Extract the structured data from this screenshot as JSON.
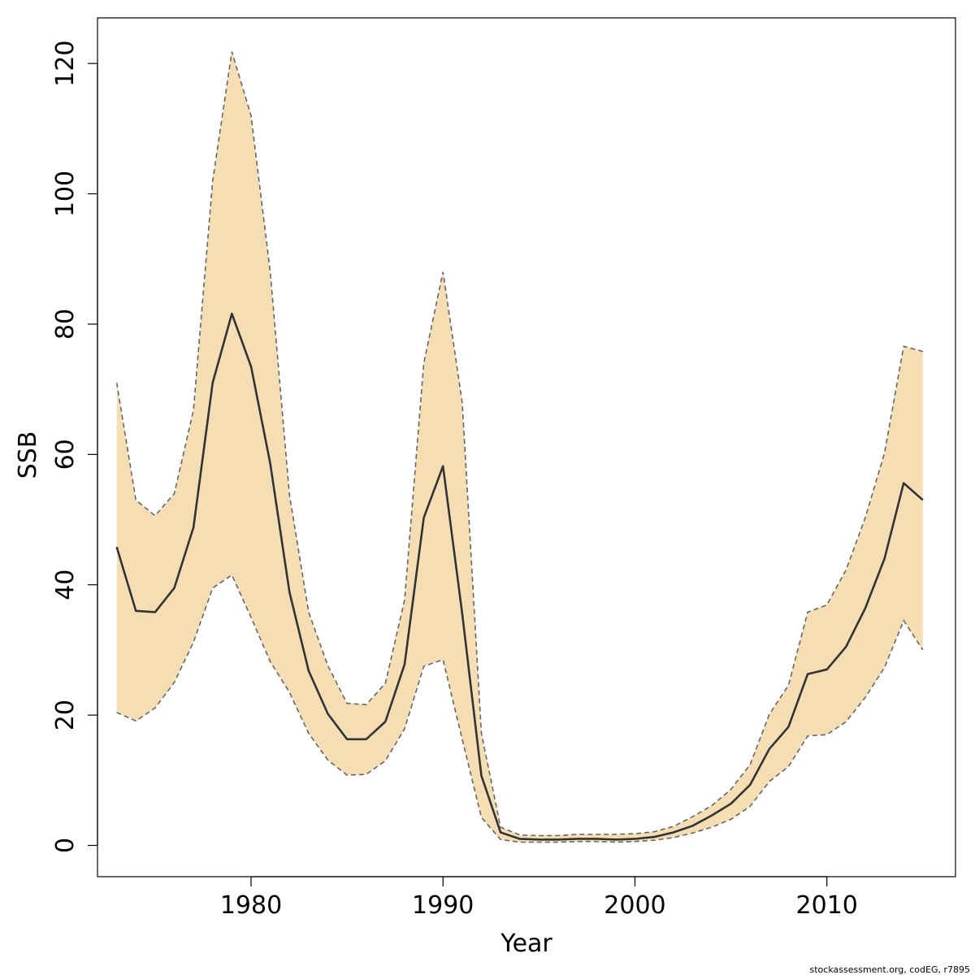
{
  "chart_data": {
    "type": "area",
    "title": "",
    "xlabel": "Year",
    "ylabel": "SSB",
    "xlim": [
      1972,
      2016.7
    ],
    "ylim": [
      -4.8,
      127
    ],
    "xticks": [
      1980,
      1990,
      2000,
      2010
    ],
    "yticks": [
      0,
      20,
      40,
      60,
      80,
      100,
      120
    ],
    "grid": false,
    "legend": "none",
    "colors": {
      "band": "#f5deb3",
      "line": "#333333",
      "bound_line": "#666666",
      "frame": "#000000"
    },
    "x": [
      1973,
      1974,
      1975,
      1976,
      1977,
      1978,
      1979,
      1980,
      1981,
      1982,
      1983,
      1984,
      1985,
      1986,
      1987,
      1988,
      1989,
      1990,
      1991,
      1992,
      1993,
      1994,
      1995,
      1996,
      1997,
      1998,
      1999,
      2000,
      2001,
      2002,
      2003,
      2004,
      2005,
      2006,
      2007,
      2008,
      2009,
      2010,
      2011,
      2012,
      2013,
      2014,
      2015
    ],
    "series": [
      {
        "values": [
          45.8,
          36.0,
          35.8,
          39.5,
          48.8,
          71.0,
          81.6,
          73.5,
          58.6,
          38.9,
          26.8,
          20.2,
          16.3,
          16.3,
          19.0,
          27.8,
          50.3,
          58.2,
          35.6,
          10.7,
          2.0,
          1.0,
          0.9,
          0.9,
          1.0,
          1.0,
          0.9,
          1.0,
          1.3,
          2.0,
          3.0,
          4.6,
          6.4,
          9.3,
          14.8,
          18.2,
          26.3,
          27.0,
          30.5,
          36.4,
          44.0,
          55.6,
          53.0
        ]
      }
    ],
    "upper": [
      71.0,
      53.0,
      50.6,
      54.0,
      66.8,
      102.0,
      121.8,
      112.0,
      88.0,
      53.8,
      35.8,
      27.6,
      21.8,
      21.6,
      24.9,
      37.7,
      74.0,
      88.0,
      68.0,
      17.2,
      2.8,
      1.6,
      1.5,
      1.5,
      1.7,
      1.7,
      1.7,
      1.8,
      2.1,
      2.9,
      4.4,
      6.1,
      8.6,
      12.4,
      20.1,
      24.6,
      35.8,
      36.9,
      42.3,
      50.3,
      60.2,
      76.6,
      75.8
    ],
    "lower": [
      20.4,
      19.1,
      21.1,
      25.0,
      31.2,
      39.5,
      41.5,
      35.0,
      28.2,
      23.5,
      17.2,
      13.1,
      10.8,
      10.9,
      13.0,
      17.9,
      27.5,
      28.5,
      16.3,
      4.3,
      0.9,
      0.5,
      0.5,
      0.5,
      0.6,
      0.6,
      0.5,
      0.6,
      0.8,
      1.2,
      1.9,
      2.8,
      4.0,
      6.0,
      9.8,
      12.1,
      16.8,
      17.0,
      19.0,
      22.7,
      27.3,
      34.5,
      30.0
    ],
    "credit": "stockassessment.org, codEG, r7895"
  }
}
